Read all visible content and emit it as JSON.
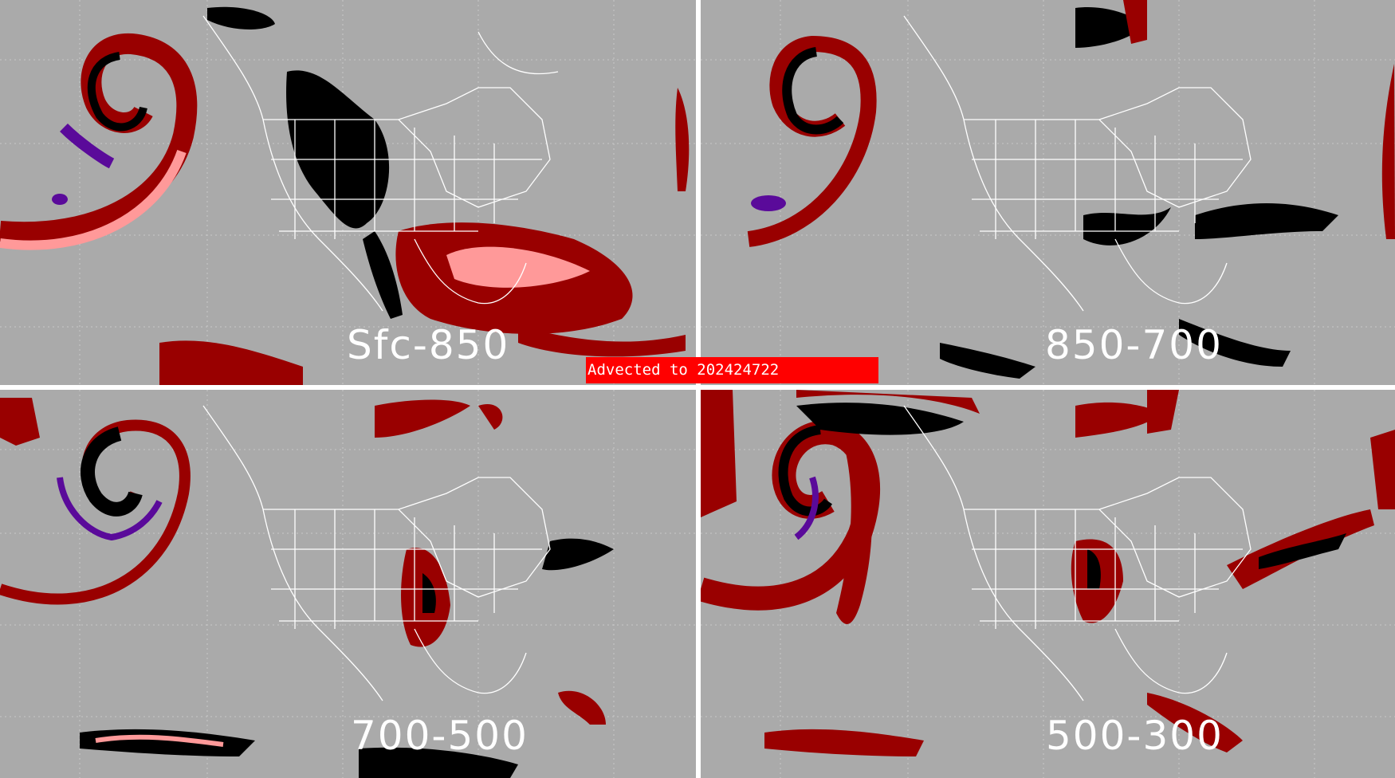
{
  "colors": {
    "background": "#aaaaaa",
    "divider": "#ffffff",
    "coastline": "#ffffff",
    "dark_red": "#990000",
    "pink": "#ff9999",
    "black": "#000000",
    "purple": "#5a0a9a",
    "bright_red": "#cc0000",
    "banner": "#ff0000"
  },
  "panels": [
    {
      "id": "tl",
      "label": "Sfc-850"
    },
    {
      "id": "tr",
      "label": "850-700"
    },
    {
      "id": "bl",
      "label": "700-500"
    },
    {
      "id": "br",
      "label": "500-300"
    }
  ],
  "banner": {
    "text": "Advected to  202424722"
  }
}
